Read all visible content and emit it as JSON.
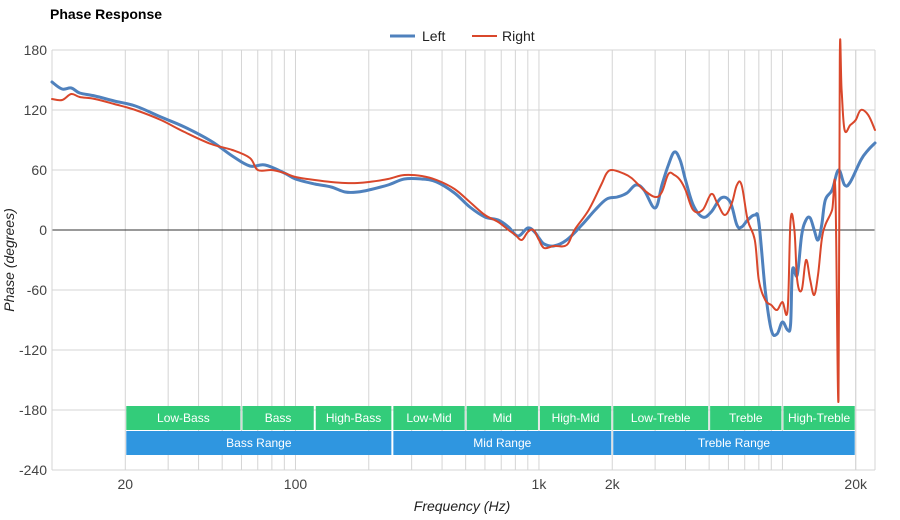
{
  "chart_data": {
    "type": "line",
    "title": "Phase Response",
    "xlabel": "Frequency (Hz)",
    "ylabel": "Phase (degrees)",
    "x_scale": "log",
    "xlim": [
      10,
      24000
    ],
    "ylim": [
      -240,
      180
    ],
    "x_ticks": [
      {
        "value": 20,
        "label": "20"
      },
      {
        "value": 100,
        "label": "100"
      },
      {
        "value": 1000,
        "label": "1k"
      },
      {
        "value": 2000,
        "label": "2k"
      },
      {
        "value": 20000,
        "label": "20k"
      }
    ],
    "y_ticks": [
      {
        "value": 180,
        "label": "180"
      },
      {
        "value": 120,
        "label": "120"
      },
      {
        "value": 60,
        "label": "60"
      },
      {
        "value": 0,
        "label": "0"
      },
      {
        "value": -60,
        "label": "-60"
      },
      {
        "value": -120,
        "label": "-120"
      },
      {
        "value": -180,
        "label": "-180"
      },
      {
        "value": -240,
        "label": "-240"
      }
    ],
    "grid": true,
    "legend_position": "top-center",
    "series": [
      {
        "name": "Left",
        "color": "#4f81bd",
        "points": [
          [
            10,
            148
          ],
          [
            11,
            141
          ],
          [
            12,
            142
          ],
          [
            13,
            137
          ],
          [
            15,
            134
          ],
          [
            18,
            129
          ],
          [
            22,
            124
          ],
          [
            28,
            113
          ],
          [
            35,
            103
          ],
          [
            45,
            89
          ],
          [
            55,
            74
          ],
          [
            65,
            64
          ],
          [
            75,
            65
          ],
          [
            90,
            57
          ],
          [
            100,
            51
          ],
          [
            120,
            46
          ],
          [
            140,
            43
          ],
          [
            160,
            38
          ],
          [
            180,
            38
          ],
          [
            200,
            40
          ],
          [
            240,
            45
          ],
          [
            280,
            51
          ],
          [
            330,
            51
          ],
          [
            380,
            48
          ],
          [
            450,
            37
          ],
          [
            520,
            23
          ],
          [
            600,
            13
          ],
          [
            680,
            10
          ],
          [
            750,
            3
          ],
          [
            820,
            -6
          ],
          [
            900,
            2
          ],
          [
            960,
            -2
          ],
          [
            1000,
            -8
          ],
          [
            1050,
            -14
          ],
          [
            1150,
            -16
          ],
          [
            1300,
            -10
          ],
          [
            1500,
            5
          ],
          [
            1700,
            20
          ],
          [
            1900,
            31
          ],
          [
            2100,
            33
          ],
          [
            2300,
            37
          ],
          [
            2500,
            45
          ],
          [
            2700,
            40
          ],
          [
            3000,
            22
          ],
          [
            3200,
            45
          ],
          [
            3400,
            65
          ],
          [
            3600,
            78
          ],
          [
            3800,
            70
          ],
          [
            4000,
            50
          ],
          [
            4300,
            25
          ],
          [
            4700,
            13
          ],
          [
            5100,
            18
          ],
          [
            5600,
            32
          ],
          [
            6100,
            28
          ],
          [
            6500,
            5
          ],
          [
            6800,
            3
          ],
          [
            7200,
            10
          ],
          [
            7700,
            15
          ],
          [
            8000,
            8
          ],
          [
            8500,
            -60
          ],
          [
            9000,
            -100
          ],
          [
            9500,
            -104
          ],
          [
            10000,
            -92
          ],
          [
            10500,
            -100
          ],
          [
            10800,
            -94
          ],
          [
            11000,
            -40
          ],
          [
            11500,
            -45
          ],
          [
            12000,
            -5
          ],
          [
            12500,
            10
          ],
          [
            13000,
            12
          ],
          [
            13500,
            0
          ],
          [
            14000,
            -10
          ],
          [
            14500,
            5
          ],
          [
            15000,
            30
          ],
          [
            16000,
            40
          ],
          [
            17000,
            60
          ],
          [
            18000,
            45
          ],
          [
            19000,
            48
          ],
          [
            21000,
            70
          ],
          [
            22500,
            80
          ],
          [
            24000,
            87
          ]
        ]
      },
      {
        "name": "Right",
        "color": "#d9472b",
        "points": [
          [
            10,
            131
          ],
          [
            11,
            130
          ],
          [
            12,
            136
          ],
          [
            13,
            133
          ],
          [
            15,
            131
          ],
          [
            18,
            126
          ],
          [
            22,
            120
          ],
          [
            28,
            110
          ],
          [
            35,
            98
          ],
          [
            45,
            86
          ],
          [
            55,
            80
          ],
          [
            65,
            72
          ],
          [
            70,
            60
          ],
          [
            80,
            60
          ],
          [
            90,
            57
          ],
          [
            100,
            53
          ],
          [
            120,
            50
          ],
          [
            140,
            48
          ],
          [
            160,
            47
          ],
          [
            180,
            47
          ],
          [
            200,
            48
          ],
          [
            240,
            51
          ],
          [
            280,
            55
          ],
          [
            330,
            54
          ],
          [
            380,
            50
          ],
          [
            450,
            41
          ],
          [
            520,
            28
          ],
          [
            600,
            15
          ],
          [
            680,
            8
          ],
          [
            750,
            0
          ],
          [
            800,
            -5
          ],
          [
            850,
            -10
          ],
          [
            900,
            -2
          ],
          [
            950,
            0
          ],
          [
            1000,
            -10
          ],
          [
            1050,
            -18
          ],
          [
            1150,
            -16
          ],
          [
            1300,
            -15
          ],
          [
            1400,
            0
          ],
          [
            1600,
            20
          ],
          [
            1800,
            45
          ],
          [
            1900,
            57
          ],
          [
            2000,
            60
          ],
          [
            2200,
            57
          ],
          [
            2400,
            52
          ],
          [
            2700,
            40
          ],
          [
            3000,
            33
          ],
          [
            3200,
            38
          ],
          [
            3400,
            56
          ],
          [
            3600,
            55
          ],
          [
            3800,
            50
          ],
          [
            4000,
            40
          ],
          [
            4300,
            20
          ],
          [
            4700,
            20
          ],
          [
            5100,
            36
          ],
          [
            5400,
            27
          ],
          [
            5800,
            15
          ],
          [
            6200,
            27
          ],
          [
            6500,
            45
          ],
          [
            6800,
            45
          ],
          [
            7200,
            10
          ],
          [
            7700,
            -10
          ],
          [
            8000,
            -50
          ],
          [
            8500,
            -70
          ],
          [
            9000,
            -75
          ],
          [
            9500,
            -80
          ],
          [
            10000,
            -72
          ],
          [
            10500,
            -80
          ],
          [
            10800,
            10
          ],
          [
            11200,
            0
          ],
          [
            11500,
            -50
          ],
          [
            12000,
            -60
          ],
          [
            12500,
            -30
          ],
          [
            13000,
            -50
          ],
          [
            13500,
            -65
          ],
          [
            14000,
            -45
          ],
          [
            14500,
            -10
          ],
          [
            15000,
            5
          ],
          [
            16000,
            20
          ],
          [
            16500,
            38
          ],
          [
            17000,
            -170
          ],
          [
            17200,
            170
          ],
          [
            17500,
            140
          ],
          [
            18000,
            100
          ],
          [
            19000,
            105
          ],
          [
            20000,
            110
          ],
          [
            21000,
            120
          ],
          [
            22500,
            115
          ],
          [
            24000,
            100
          ]
        ]
      }
    ],
    "bands": [
      {
        "label": "Low-Bass",
        "from": 20,
        "to": 60,
        "row": 1
      },
      {
        "label": "Bass",
        "from": 60,
        "to": 120,
        "row": 1
      },
      {
        "label": "High-Bass",
        "from": 120,
        "to": 250,
        "row": 1
      },
      {
        "label": "Low-Mid",
        "from": 250,
        "to": 500,
        "row": 1
      },
      {
        "label": "Mid",
        "from": 500,
        "to": 1000,
        "row": 1
      },
      {
        "label": "High-Mid",
        "from": 1000,
        "to": 2000,
        "row": 1
      },
      {
        "label": "Low-Treble",
        "from": 2000,
        "to": 5000,
        "row": 1
      },
      {
        "label": "Treble",
        "from": 5000,
        "to": 10000,
        "row": 1
      },
      {
        "label": "High-Treble",
        "from": 10000,
        "to": 20000,
        "row": 1
      },
      {
        "label": "Bass Range",
        "from": 20,
        "to": 250,
        "row": 2
      },
      {
        "label": "Mid Range",
        "from": 250,
        "to": 2000,
        "row": 2
      },
      {
        "label": "Treble Range",
        "from": 2000,
        "to": 20000,
        "row": 2
      }
    ],
    "band_colors": {
      "row1": "#33cc7a",
      "row2": "#2f96e0"
    }
  }
}
